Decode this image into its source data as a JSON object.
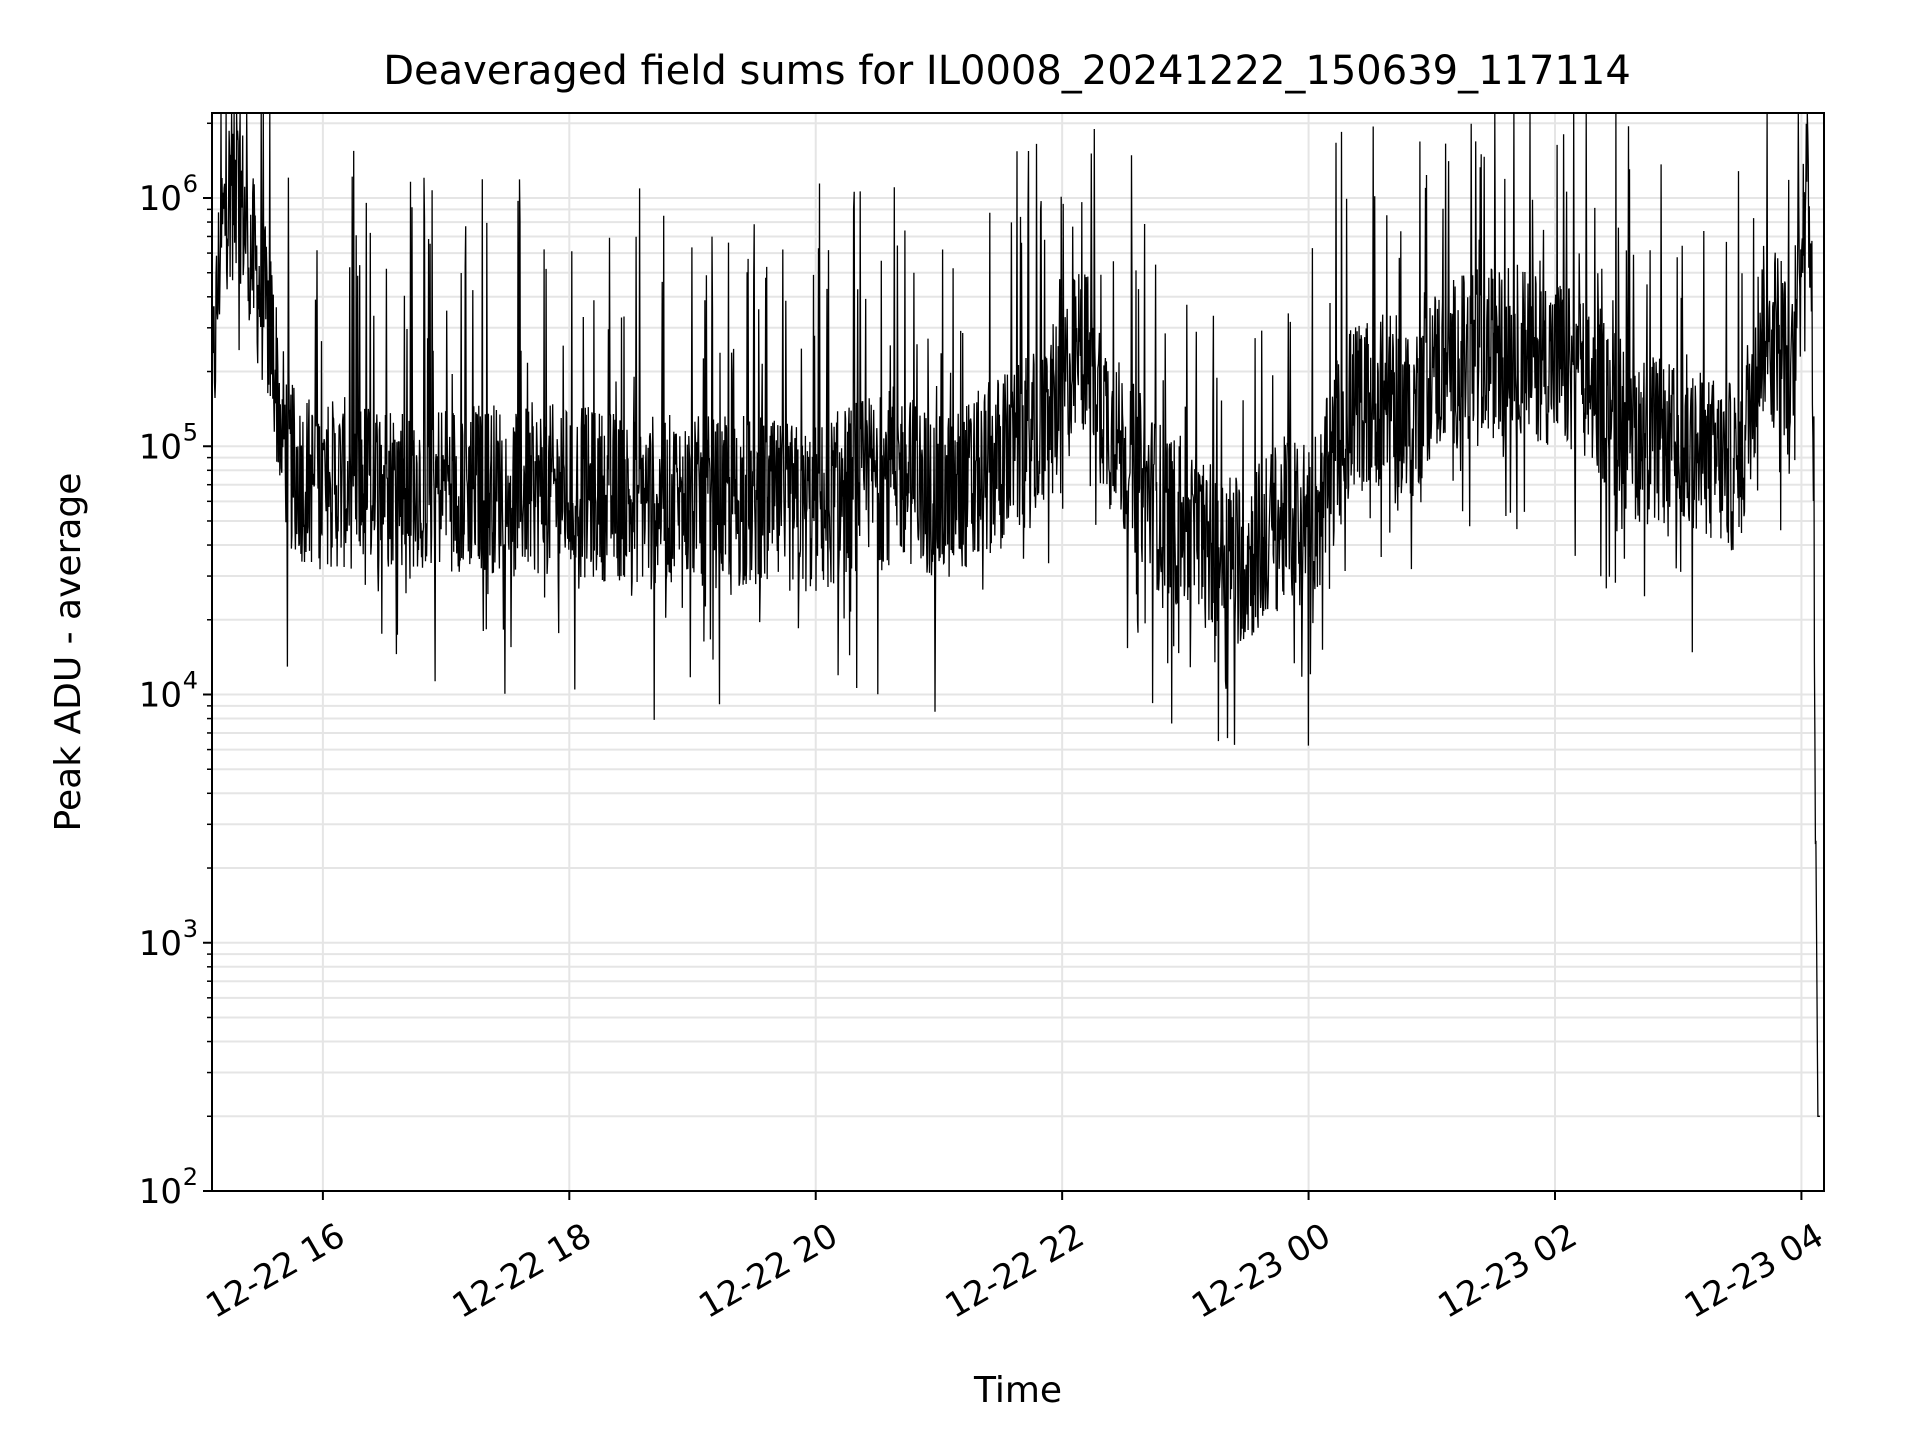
{
  "chart_data": {
    "type": "line",
    "title": "Deaveraged field sums for IL0008_20241222_150639_117114",
    "xlabel": "Time",
    "ylabel": "Peak ADU - average",
    "yscale": "log",
    "ylim": [
      100,
      2200000
    ],
    "xlim": [
      "2024-12-22 15:06",
      "2024-12-23 04:11"
    ],
    "grid": true,
    "line_color": "#000000",
    "grid_color": "#e5e5e5",
    "x_ticks": [
      {
        "t": "2024-12-22 16:00",
        "label": "12-22 16"
      },
      {
        "t": "2024-12-22 18:00",
        "label": "12-22 18"
      },
      {
        "t": "2024-12-22 20:00",
        "label": "12-22 20"
      },
      {
        "t": "2024-12-22 22:00",
        "label": "12-22 22"
      },
      {
        "t": "2024-12-23 00:00",
        "label": "12-23 00"
      },
      {
        "t": "2024-12-23 02:00",
        "label": "12-23 02"
      },
      {
        "t": "2024-12-23 04:00",
        "label": "12-23 04"
      }
    ],
    "y_ticks": [
      {
        "value": 100,
        "base": "10",
        "exp": "2"
      },
      {
        "value": 1000,
        "base": "10",
        "exp": "3"
      },
      {
        "value": 10000,
        "base": "10",
        "exp": "4"
      },
      {
        "value": 100000,
        "base": "10",
        "exp": "5"
      },
      {
        "value": 1000000,
        "base": "10",
        "exp": "6"
      }
    ],
    "series": [
      {
        "x": [
          "2024-12-22 15:06",
          "2024-12-22 15:10",
          "2024-12-22 15:15",
          "2024-12-22 15:20",
          "2024-12-22 15:25",
          "2024-12-22 15:30",
          "2024-12-22 15:35",
          "2024-12-22 15:40",
          "2024-12-22 15:45",
          "2024-12-22 15:50",
          "2024-12-22 16:00",
          "2024-12-22 16:30",
          "2024-12-22 17:00",
          "2024-12-22 17:30",
          "2024-12-22 18:00",
          "2024-12-22 18:30",
          "2024-12-22 19:00",
          "2024-12-22 19:30",
          "2024-12-22 20:00",
          "2024-12-22 20:20",
          "2024-12-22 20:40",
          "2024-12-22 21:00",
          "2024-12-22 21:15",
          "2024-12-22 21:30",
          "2024-12-22 21:50",
          "2024-12-22 22:10",
          "2024-12-22 22:25",
          "2024-12-22 22:45",
          "2024-12-22 23:00",
          "2024-12-22 23:15",
          "2024-12-22 23:30",
          "2024-12-22 23:45",
          "2024-12-23 00:05",
          "2024-12-23 00:20",
          "2024-12-23 00:40",
          "2024-12-23 00:50",
          "2024-12-23 01:00",
          "2024-12-23 01:20",
          "2024-12-23 01:40",
          "2024-12-23 02:00",
          "2024-12-23 02:20",
          "2024-12-23 02:40",
          "2024-12-23 03:00",
          "2024-12-23 03:20",
          "2024-12-23 03:30",
          "2024-12-23 03:40",
          "2024-12-23 03:50",
          "2024-12-23 03:55",
          "2024-12-23 04:00",
          "2024-12-23 04:03",
          "2024-12-23 04:05",
          "2024-12-23 04:08",
          "2024-12-23 04:09"
        ],
        "y": [
          150000,
          650000,
          1150000,
          1000000,
          600000,
          400000,
          280000,
          120000,
          80000,
          75000,
          70000,
          72000,
          70000,
          68000,
          66000,
          62000,
          60000,
          58000,
          55000,
          70000,
          80000,
          60000,
          70000,
          90000,
          110000,
          260000,
          110000,
          60000,
          45000,
          38000,
          35000,
          48000,
          55000,
          140000,
          160000,
          130000,
          200000,
          230000,
          250000,
          220000,
          170000,
          110000,
          95000,
          85000,
          80000,
          290000,
          300000,
          150000,
          1000000,
          1050000,
          600000,
          200,
          200
        ]
      }
    ]
  }
}
